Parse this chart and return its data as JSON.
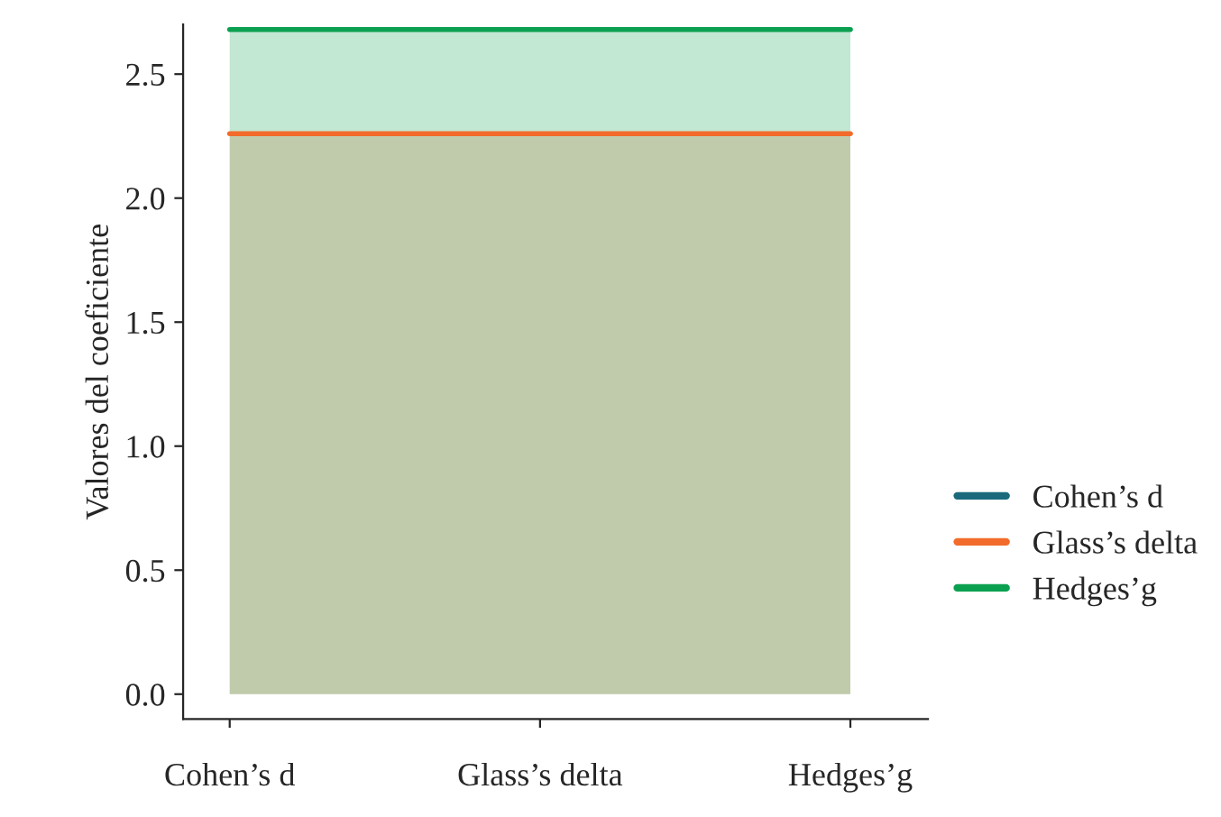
{
  "chart_data": {
    "type": "area",
    "ylabel": "Valores del coeficiente",
    "categories": [
      "Cohen’s d",
      "Glass’s delta",
      "Hedges’g"
    ],
    "series": [
      {
        "name": "Cohen’s d",
        "color": "#1b6a7b",
        "values": [
          null,
          null,
          null
        ]
      },
      {
        "name": "Glass’s delta",
        "color": "#f26b2a",
        "values": [
          2.26,
          2.26,
          2.26
        ]
      },
      {
        "name": "Hedges’g",
        "color": "#0aa050",
        "values": [
          2.68,
          2.68,
          2.68
        ]
      }
    ],
    "ylim": [
      -0.1,
      2.7
    ],
    "yticks": [
      {
        "value": 0,
        "label": "0.0"
      },
      0.5,
      {
        "value": 1,
        "label": "1.0"
      },
      1.5,
      {
        "value": 2,
        "label": "2.0"
      },
      2.5
    ],
    "legend": "right",
    "grid": false
  }
}
